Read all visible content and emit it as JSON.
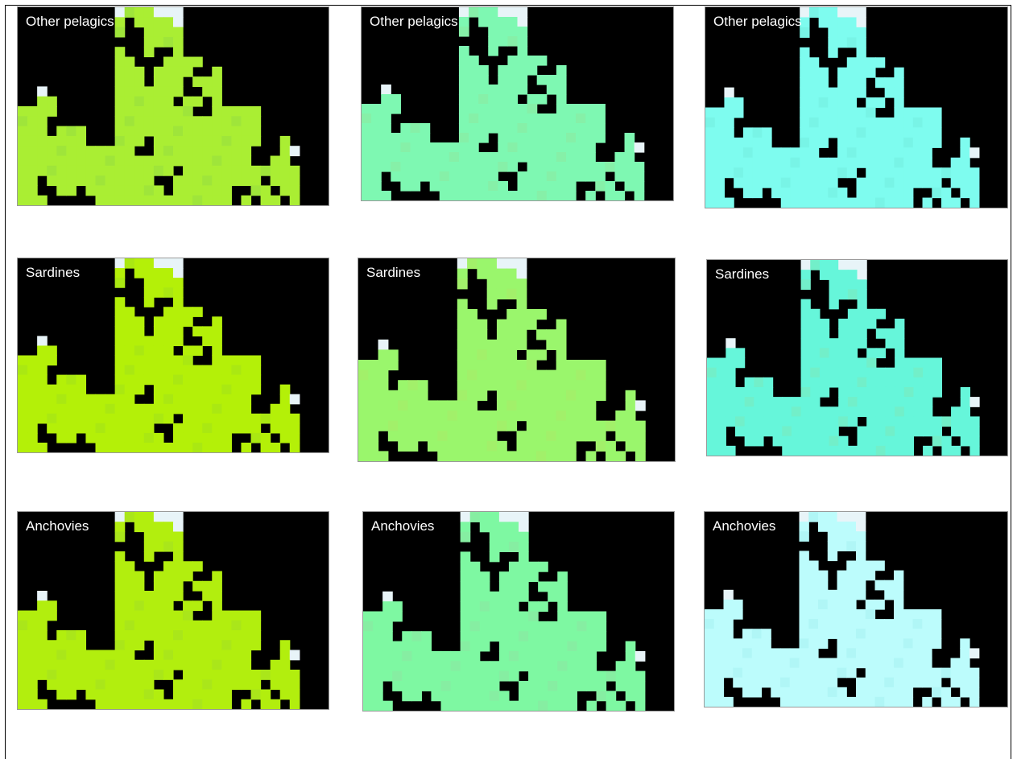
{
  "figure": {
    "rows": [
      {
        "label": "Other pelagics",
        "colors": {
          "p1": "#aaee33",
          "p2": "#7ef8b2",
          "p3": "#7efcef"
        },
        "alt": {
          "p1": "#9fe53a",
          "p2": "#86f0a8",
          "p3": "#78f4e6"
        }
      },
      {
        "label": "Sardines",
        "colors": {
          "p1": "#b4f008",
          "p2": "#9af66c",
          "p3": "#66f6da"
        },
        "alt": {
          "p1": "#aae812",
          "p2": "#a2f06a",
          "p3": "#72efc9"
        }
      },
      {
        "label": "Anchovies",
        "colors": {
          "p1": "#b2ee0e",
          "p2": "#7ef8a2",
          "p3": "#bcfcfc"
        },
        "alt": {
          "p1": "#aae61a",
          "p2": "#86eea2",
          "p3": "#b0f6f6"
        }
      }
    ],
    "snow_color": "#e8f4f8",
    "background_color": "#000000"
  }
}
